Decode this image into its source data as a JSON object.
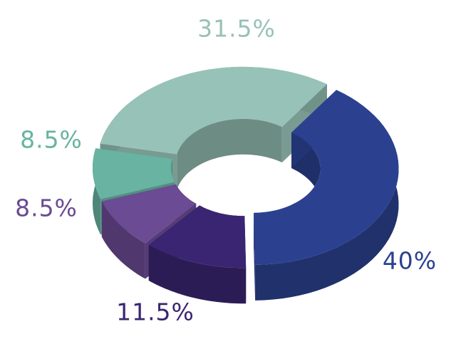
{
  "chart_data": {
    "type": "donut",
    "series": [
      {
        "color": "#2b4190",
        "values": [
          40,
          11.5,
          8.5,
          8.5,
          31.5
        ],
        "value_labels": [
          "40%",
          "11.5%",
          "8.5%",
          "8.5%",
          "31.5%"
        ]
      }
    ],
    "colors": [
      "#2b4190",
      "#3a2572",
      "#6a4b94",
      "#68b3a1",
      "#97c2b7"
    ]
  }
}
